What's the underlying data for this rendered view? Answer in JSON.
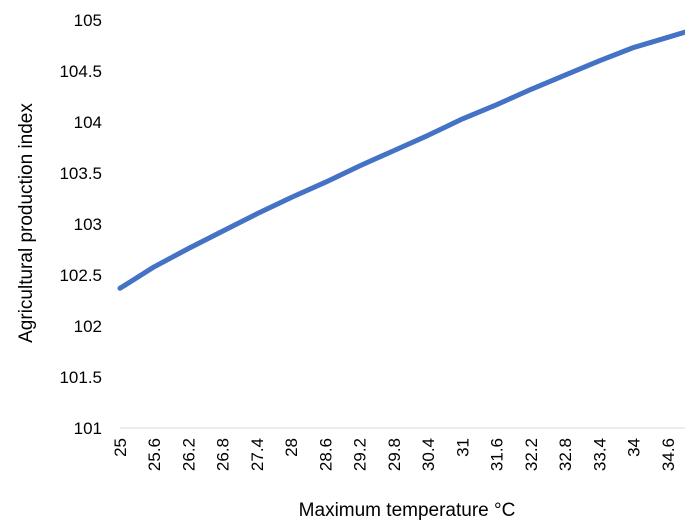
{
  "chart_data": {
    "type": "line",
    "title": "",
    "xlabel": "Maximum temperature °C",
    "ylabel": "Agricultural production index",
    "x_tick_labels": [
      "25",
      "25.6",
      "26.2",
      "26.8",
      "27.4",
      "28",
      "28.6",
      "29.2",
      "29.8",
      "30.4",
      "31",
      "31.6",
      "32.2",
      "32.8",
      "33.4",
      "34",
      "34.6"
    ],
    "y_tick_labels": [
      "101",
      "101.5",
      "102",
      "102.5",
      "103",
      "103.5",
      "104",
      "104.5",
      "105"
    ],
    "ylim": [
      101,
      105
    ],
    "xlim": [
      25,
      34.9
    ],
    "grid": false,
    "legend": "none",
    "series_color": "#4472c4",
    "series": [
      {
        "x": [
          25,
          25.6,
          26.2,
          26.8,
          27.4,
          28,
          28.6,
          29.2,
          29.8,
          30.4,
          31,
          31.6,
          32.2,
          32.8,
          33.4,
          34,
          34.6,
          34.9
        ],
        "values": [
          102.37,
          102.58,
          102.76,
          102.93,
          103.1,
          103.26,
          103.41,
          103.57,
          103.72,
          103.87,
          104.03,
          104.17,
          104.32,
          104.46,
          104.6,
          104.73,
          104.83,
          104.88
        ]
      }
    ]
  }
}
